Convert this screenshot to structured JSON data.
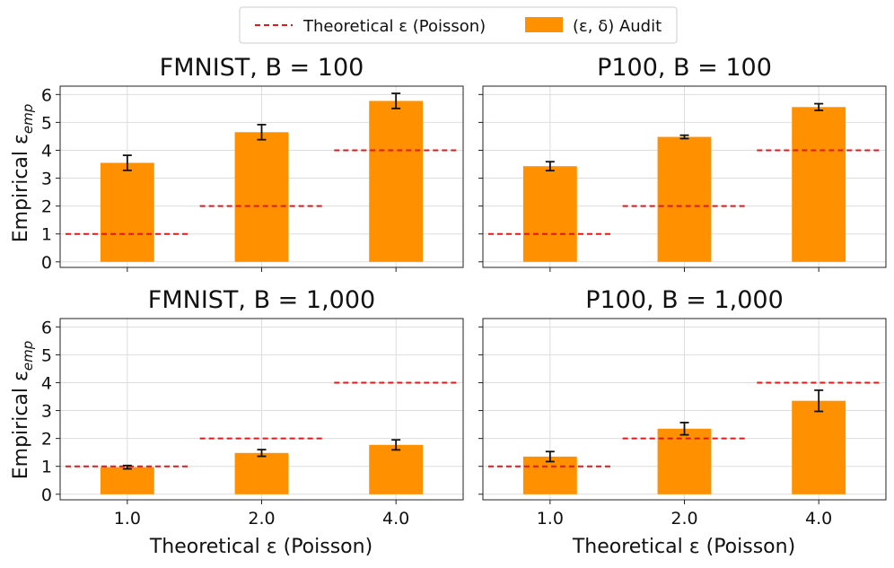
{
  "legend": {
    "theoretical_label": "Theoretical ε (Poisson)",
    "audit_label": "(ε, δ) Audit"
  },
  "colors": {
    "bar": "#ff9100",
    "theory_line": "#e0191b",
    "error_bar": "#111111",
    "grid": "#dddddd",
    "axis": "#222222"
  },
  "xlabel": "Theoretical ε (Poisson)",
  "ylabel": "Empirical ε",
  "ylabel_sub": "emp",
  "chart_data": [
    {
      "type": "bar",
      "title": "FMNIST, B = 100",
      "categories": [
        "1.0",
        "2.0",
        "4.0"
      ],
      "series": [
        {
          "name": "(ε, δ) Audit",
          "values": [
            3.55,
            4.65,
            5.77
          ],
          "errors": [
            0.27,
            0.27,
            0.27
          ]
        },
        {
          "name": "Theoretical ε (Poisson)",
          "values": [
            1.0,
            2.0,
            4.0
          ]
        }
      ],
      "ylim": [
        -0.2,
        6.3
      ],
      "yticks": [
        0,
        1,
        2,
        3,
        4,
        5,
        6
      ],
      "show_ytick_labels": true,
      "show_xtick_labels": false,
      "grid": true,
      "legend": "top-center"
    },
    {
      "type": "bar",
      "title": "P100, B = 100",
      "categories": [
        "1.0",
        "2.0",
        "4.0"
      ],
      "series": [
        {
          "name": "(ε, δ) Audit",
          "values": [
            3.43,
            4.48,
            5.55
          ],
          "errors": [
            0.16,
            0.06,
            0.12
          ]
        },
        {
          "name": "Theoretical ε (Poisson)",
          "values": [
            1.0,
            2.0,
            4.0
          ]
        }
      ],
      "ylim": [
        -0.2,
        6.3
      ],
      "yticks": [
        0,
        1,
        2,
        3,
        4,
        5,
        6
      ],
      "show_ytick_labels": false,
      "show_xtick_labels": false,
      "grid": true
    },
    {
      "type": "bar",
      "title": "FMNIST, B = 1,000",
      "categories": [
        "1.0",
        "2.0",
        "4.0"
      ],
      "series": [
        {
          "name": "(ε, δ) Audit",
          "values": [
            0.97,
            1.48,
            1.77
          ],
          "errors": [
            0.06,
            0.12,
            0.18
          ]
        },
        {
          "name": "Theoretical ε (Poisson)",
          "values": [
            1.0,
            2.0,
            4.0
          ]
        }
      ],
      "ylim": [
        -0.2,
        6.3
      ],
      "yticks": [
        0,
        1,
        2,
        3,
        4,
        5,
        6
      ],
      "show_ytick_labels": true,
      "show_xtick_labels": true,
      "grid": true
    },
    {
      "type": "bar",
      "title": "P100, B = 1,000",
      "categories": [
        "1.0",
        "2.0",
        "4.0"
      ],
      "series": [
        {
          "name": "(ε, δ) Audit",
          "values": [
            1.35,
            2.35,
            3.35
          ],
          "errors": [
            0.18,
            0.22,
            0.38
          ]
        },
        {
          "name": "Theoretical ε (Poisson)",
          "values": [
            1.0,
            2.0,
            4.0
          ]
        }
      ],
      "ylim": [
        -0.2,
        6.3
      ],
      "yticks": [
        0,
        1,
        2,
        3,
        4,
        5,
        6
      ],
      "show_ytick_labels": false,
      "show_xtick_labels": true,
      "grid": true
    }
  ]
}
